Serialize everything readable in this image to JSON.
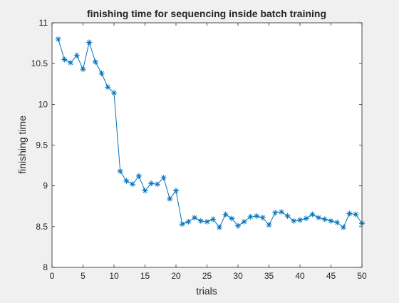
{
  "chart_data": {
    "type": "line",
    "title": "finishing time for sequencing inside batch training",
    "xlabel": "trials",
    "ylabel": "finishing time",
    "xlim": [
      0,
      50
    ],
    "ylim": [
      8,
      11
    ],
    "xticks": [
      0,
      5,
      10,
      15,
      20,
      25,
      30,
      35,
      40,
      45,
      50
    ],
    "yticks": [
      8,
      8.5,
      9,
      9.5,
      10,
      10.5,
      11
    ],
    "xtick_labels": [
      "0",
      "5",
      "10",
      "15",
      "20",
      "25",
      "30",
      "35",
      "40",
      "45",
      "50"
    ],
    "ytick_labels": [
      "8",
      "8.5",
      "9",
      "9.5",
      "10",
      "10.5",
      "11"
    ],
    "grid": false,
    "legend": "none",
    "marker": "asterisk",
    "line_color": "#0072bd",
    "series": [
      {
        "x": [
          1,
          2,
          3,
          4,
          5,
          6,
          7,
          8,
          9,
          10,
          11,
          12,
          13,
          14,
          15,
          16,
          17,
          18,
          19,
          20,
          21,
          22,
          23,
          24,
          25,
          26,
          27,
          28,
          29,
          30,
          31,
          32,
          33,
          34,
          35,
          36,
          37,
          38,
          39,
          40,
          41,
          42,
          43,
          44,
          45,
          46,
          47,
          48,
          49,
          50
        ],
        "values": [
          10.8,
          10.55,
          10.51,
          10.6,
          10.43,
          10.76,
          10.52,
          10.38,
          10.21,
          10.14,
          9.18,
          9.06,
          9.02,
          9.12,
          8.94,
          9.03,
          9.02,
          9.1,
          8.84,
          8.94,
          8.53,
          8.56,
          8.61,
          8.57,
          8.56,
          8.59,
          8.49,
          8.65,
          8.6,
          8.51,
          8.56,
          8.62,
          8.63,
          8.61,
          8.52,
          8.67,
          8.68,
          8.63,
          8.57,
          8.58,
          8.6,
          8.65,
          8.61,
          8.59,
          8.57,
          8.55,
          8.49,
          8.66,
          8.65,
          8.54
        ]
      }
    ]
  }
}
